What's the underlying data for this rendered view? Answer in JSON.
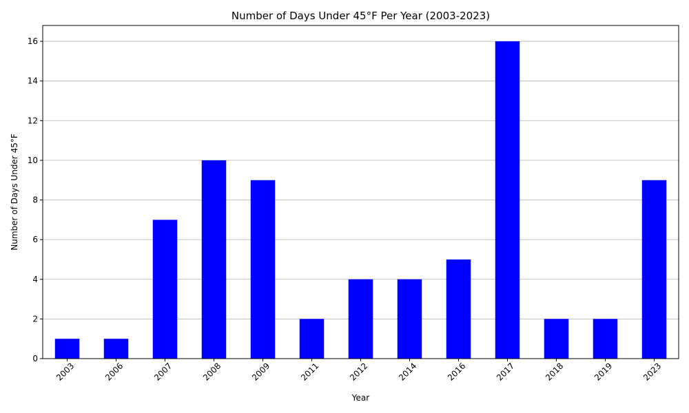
{
  "chart_data": {
    "type": "bar",
    "title": "Number of Days Under 45°F Per Year (2003-2023)",
    "xlabel": "Year",
    "ylabel": "Number of Days Under 45°F",
    "categories": [
      "2003",
      "2006",
      "2007",
      "2008",
      "2009",
      "2011",
      "2012",
      "2014",
      "2016",
      "2017",
      "2018",
      "2019",
      "2023"
    ],
    "values": [
      1,
      1,
      7,
      10,
      9,
      2,
      4,
      4,
      5,
      16,
      2,
      2,
      9
    ],
    "yticks": [
      0,
      2,
      4,
      6,
      8,
      10,
      12,
      14,
      16
    ],
    "ylim": [
      0,
      16.8
    ],
    "grid": "y",
    "bar_color": "#0000ff"
  }
}
